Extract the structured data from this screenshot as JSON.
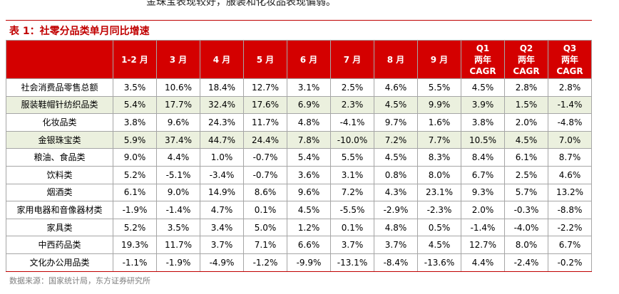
{
  "intro_text": "金珠宝表现较好，服装和化妆品表现偏弱。",
  "caption": "表 1：社零分品类单月同比增速",
  "header": {
    "corner": "",
    "columns": [
      [
        "1-2 月"
      ],
      [
        "3 月"
      ],
      [
        "4 月"
      ],
      [
        "5 月"
      ],
      [
        "6 月"
      ],
      [
        "7 月"
      ],
      [
        "8 月"
      ],
      [
        "9 月"
      ],
      [
        "Q1",
        "两年",
        "CAGR"
      ],
      [
        "Q2",
        "两年",
        "CAGR"
      ],
      [
        "Q3",
        "两年",
        "CAGR"
      ]
    ]
  },
  "rows": [
    {
      "label": "社会消费品零售总额",
      "values": [
        "3.5%",
        "10.6%",
        "18.4%",
        "12.7%",
        "3.1%",
        "2.5%",
        "4.6%",
        "5.5%",
        "4.5%",
        "2.8%",
        "2.8%"
      ]
    },
    {
      "label": "服装鞋帽针纺织品类",
      "values": [
        "5.4%",
        "17.7%",
        "32.4%",
        "17.6%",
        "6.9%",
        "2.3%",
        "4.5%",
        "9.9%",
        "3.9%",
        "1.5%",
        "-1.4%"
      ]
    },
    {
      "label": "化妆品类",
      "values": [
        "3.8%",
        "9.6%",
        "24.3%",
        "11.7%",
        "4.8%",
        "-4.1%",
        "9.7%",
        "1.6%",
        "3.8%",
        "2.0%",
        "-4.8%"
      ]
    },
    {
      "label": "金银珠宝类",
      "values": [
        "5.9%",
        "37.4%",
        "44.7%",
        "24.4%",
        "7.8%",
        "-10.0%",
        "7.2%",
        "7.7%",
        "10.5%",
        "4.5%",
        "7.0%"
      ]
    },
    {
      "label": "粮油、食品类",
      "values": [
        "9.0%",
        "4.4%",
        "1.0%",
        "-0.7%",
        "5.4%",
        "5.5%",
        "4.5%",
        "8.3%",
        "8.4%",
        "6.1%",
        "8.7%"
      ]
    },
    {
      "label": "饮料类",
      "values": [
        "5.2%",
        "-5.1%",
        "-3.4%",
        "-0.7%",
        "3.6%",
        "3.1%",
        "0.8%",
        "8.0%",
        "6.7%",
        "2.5%",
        "4.6%"
      ]
    },
    {
      "label": "烟酒类",
      "values": [
        "6.1%",
        "9.0%",
        "14.9%",
        "8.6%",
        "9.6%",
        "7.2%",
        "4.3%",
        "23.1%",
        "9.3%",
        "5.7%",
        "13.2%"
      ]
    },
    {
      "label": "家用电器和音像器材类",
      "values": [
        "-1.9%",
        "-1.4%",
        "4.7%",
        "0.1%",
        "4.5%",
        "-5.5%",
        "-2.9%",
        "-2.3%",
        "2.0%",
        "-0.3%",
        "-8.8%"
      ]
    },
    {
      "label": "家具类",
      "values": [
        "5.2%",
        "3.5%",
        "3.4%",
        "5.0%",
        "1.2%",
        "0.1%",
        "4.8%",
        "0.5%",
        "-1.4%",
        "-4.0%",
        "-2.2%"
      ]
    },
    {
      "label": "中西药品类",
      "values": [
        "19.3%",
        "11.7%",
        "3.7%",
        "7.1%",
        "6.6%",
        "3.7%",
        "3.7%",
        "4.5%",
        "12.7%",
        "8.0%",
        "6.7%"
      ]
    },
    {
      "label": "文化办公用品类",
      "values": [
        "-1.1%",
        "-1.9%",
        "-4.9%",
        "-1.2%",
        "-9.9%",
        "-13.1%",
        "-8.4%",
        "-13.6%",
        "4.4%",
        "-2.4%",
        "-0.2%"
      ]
    }
  ],
  "highlighted_rows": [
    1,
    3
  ],
  "colors": {
    "header_bg": "#d40000",
    "header_text": "#ffffff",
    "highlight_row_bg": "#ebf0de",
    "caption": "#c00000",
    "source_text": "#7f7f7f"
  },
  "source": "数据来源：国家统计局，东方证券研究所"
}
